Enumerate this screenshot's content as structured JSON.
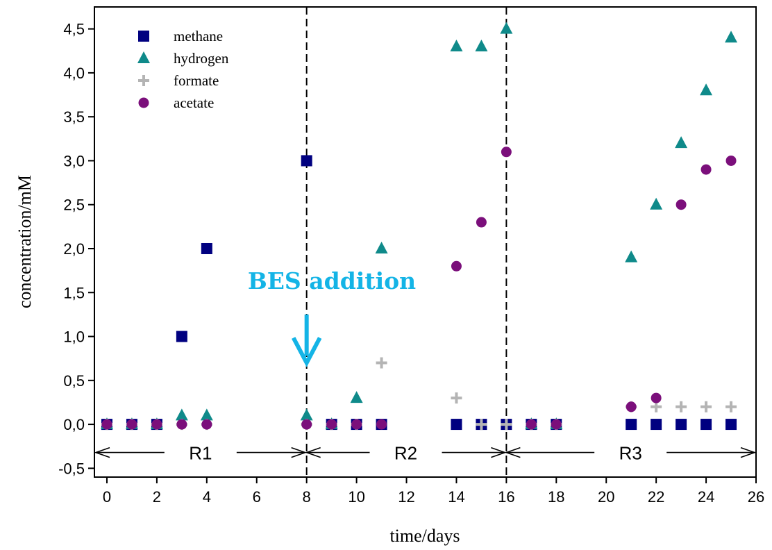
{
  "chart_data": {
    "type": "scatter",
    "title": "",
    "xlabel": "time/days",
    "ylabel": "concentration/mM",
    "xlim": [
      -0.5,
      26
    ],
    "ylim": [
      -0.6,
      4.75
    ],
    "xticks": [
      0,
      2,
      4,
      6,
      8,
      10,
      12,
      14,
      16,
      18,
      20,
      22,
      24,
      26
    ],
    "xtick_labels": [
      "0",
      "2",
      "4",
      "6",
      "8",
      "10",
      "12",
      "14",
      "16",
      "18",
      "20",
      "22",
      "24",
      "26"
    ],
    "yticks": [
      -0.5,
      0,
      0.5,
      1,
      1.5,
      2,
      2.5,
      3,
      3.5,
      4,
      4.5
    ],
    "ytick_labels": [
      "-0,5",
      "0,0",
      "0,5",
      "1,0",
      "1,5",
      "2,0",
      "2,5",
      "3,0",
      "3,5",
      "4,0",
      "4,5"
    ],
    "grid": false,
    "legend_position": "top-left",
    "series": [
      {
        "name": "methane",
        "marker": "square",
        "color": "#000080",
        "x": [
          0,
          1,
          2,
          3,
          4,
          8,
          9,
          10,
          11,
          14,
          15,
          16,
          17,
          18,
          21,
          22,
          23,
          24,
          25
        ],
        "y": [
          0,
          0,
          0,
          1.0,
          2.0,
          3.0,
          0,
          0,
          0,
          0,
          0,
          0,
          0,
          0,
          0,
          0,
          0,
          0,
          0
        ]
      },
      {
        "name": "hydrogen",
        "marker": "triangle",
        "color": "#0f8a8a",
        "x": [
          0,
          1,
          2,
          3,
          4,
          8,
          9,
          10,
          11,
          14,
          15,
          16,
          17,
          18,
          21,
          22,
          23,
          24,
          25
        ],
        "y": [
          0,
          0,
          0,
          0.1,
          0.1,
          0.1,
          0,
          0.3,
          2.0,
          4.3,
          4.3,
          4.5,
          0,
          0,
          1.9,
          2.5,
          3.2,
          3.8,
          4.4
        ]
      },
      {
        "name": "formate",
        "marker": "plus",
        "color": "#b4b4b4",
        "x": [
          0,
          1,
          2,
          3,
          4,
          8,
          9,
          10,
          11,
          14,
          15,
          16,
          17,
          18,
          21,
          22,
          23,
          24,
          25
        ],
        "y": [
          0,
          0,
          0,
          0,
          0,
          0,
          0,
          0,
          0.7,
          0.3,
          0,
          0,
          0,
          0,
          0.2,
          0.2,
          0.2,
          0.2,
          0.2
        ]
      },
      {
        "name": "acetate",
        "marker": "circle",
        "color": "#7b0f7b",
        "x": [
          0,
          1,
          2,
          3,
          4,
          8,
          9,
          10,
          11,
          14,
          15,
          16,
          17,
          18,
          21,
          22,
          23,
          24,
          25
        ],
        "y": [
          0,
          0,
          0,
          0,
          0,
          0,
          0,
          0,
          0,
          1.8,
          2.3,
          3.1,
          0,
          0,
          0.2,
          0.3,
          2.5,
          2.9,
          3.0
        ]
      }
    ],
    "vlines": [
      8,
      16
    ],
    "regions": [
      {
        "label": "R1",
        "from": -0.5,
        "to": 8,
        "y": -0.32
      },
      {
        "label": "R2",
        "from": 8,
        "to": 16,
        "y": -0.32
      },
      {
        "label": "R3",
        "from": 16,
        "to": 26,
        "y": -0.32
      }
    ],
    "annotation": {
      "text": "BES addition",
      "color": "#14b4e6",
      "arrow_x": 8,
      "arrow_y_from": 1.25,
      "arrow_y_to": 0.7
    }
  }
}
